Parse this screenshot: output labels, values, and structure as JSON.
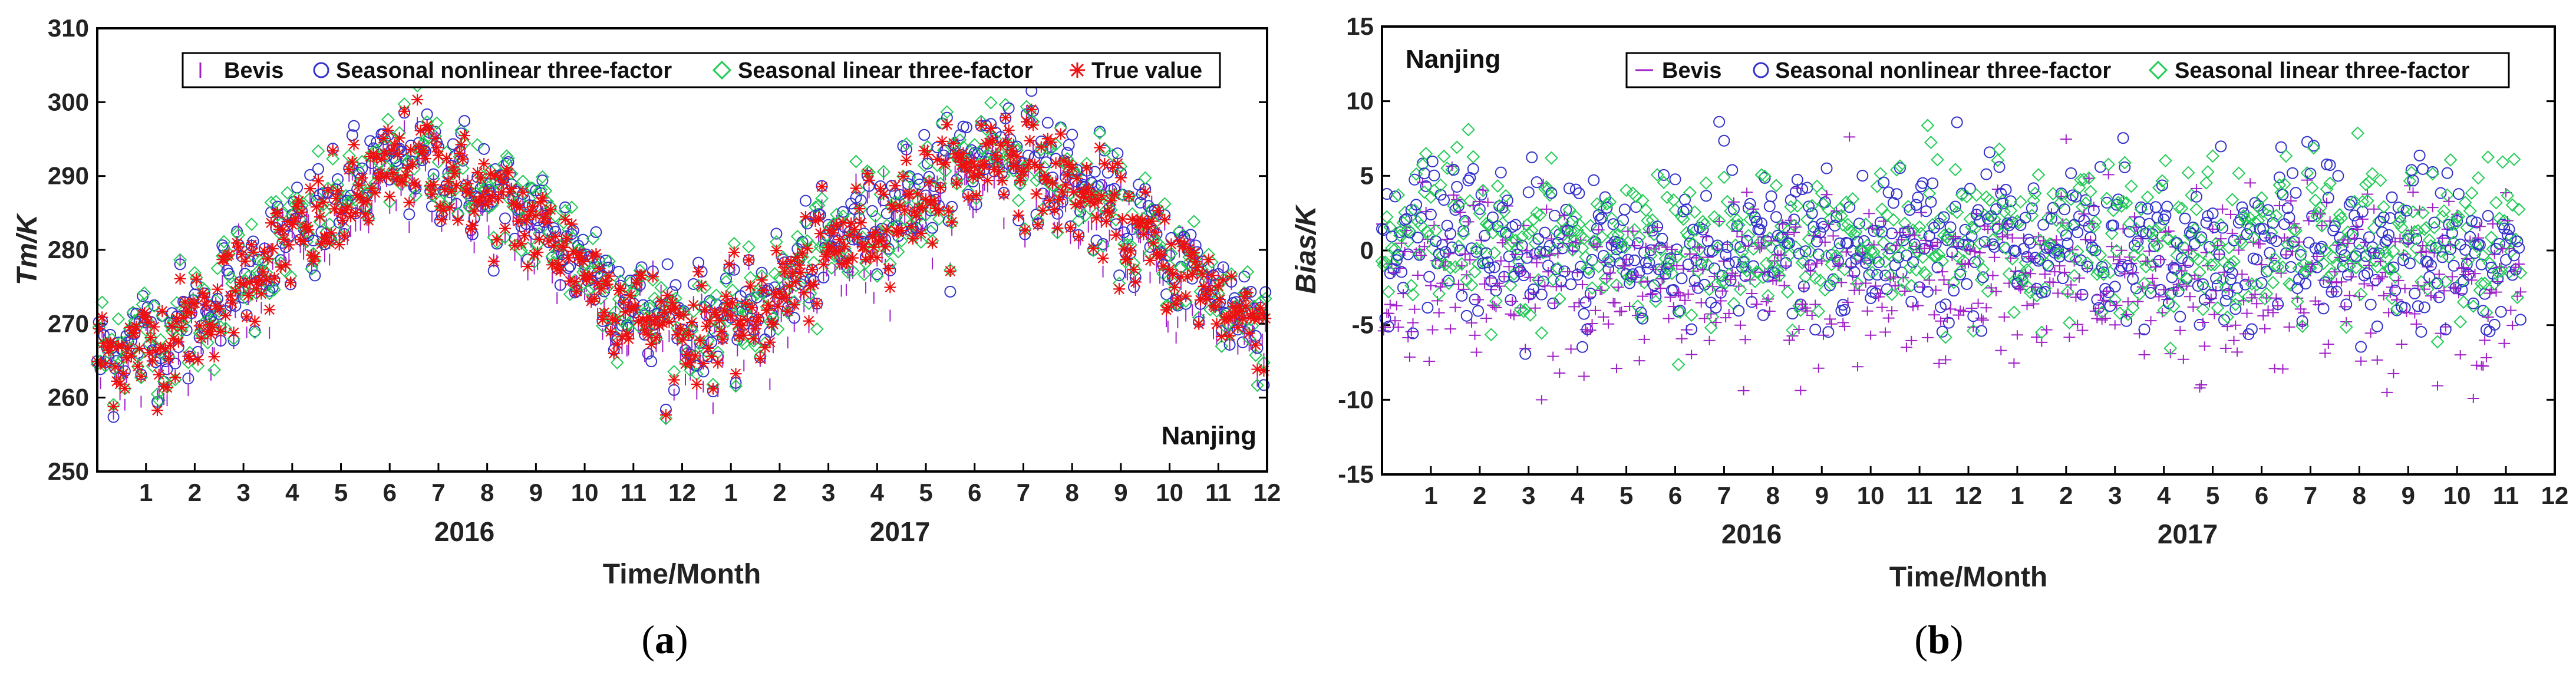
{
  "colors": {
    "bevis": "#a020c8",
    "nonlinear": "#3333cc",
    "linear": "#22cc55",
    "true": "#ee1111"
  },
  "chart_data": [
    {
      "type": "scatter",
      "panel_label": "a",
      "station": "Nanjing",
      "xlabel": "Time/Month",
      "ylabel_main": "Tm",
      "ylabel_unit": "/K",
      "ylim": [
        250,
        310
      ],
      "yticks": [
        "250",
        "260",
        "270",
        "280",
        "290",
        "300",
        "310"
      ],
      "month_ticks": [
        "1",
        "2",
        "3",
        "4",
        "5",
        "6",
        "7",
        "8",
        "9",
        "10",
        "11",
        "12",
        "1",
        "2",
        "3",
        "4",
        "5",
        "6",
        "7",
        "8",
        "9",
        "10",
        "11",
        "12"
      ],
      "years": [
        "2016",
        "2017"
      ],
      "x_range_months": [
        0,
        24
      ],
      "legend": [
        "Bevis",
        "Seasonal nonlinear three-factor",
        "Seasonal linear three-factor",
        "True value"
      ],
      "series_summary": {
        "true_value_monthly_mean_K": [
          266,
          268,
          273,
          279,
          283,
          288,
          293,
          289,
          285,
          281,
          274,
          270,
          269,
          271,
          277,
          282,
          286,
          289,
          294,
          290,
          286,
          281,
          276,
          271
        ],
        "daily_scatter_std_K": 3.5,
        "model_offsets_K": {
          "Bevis": -1.2,
          "Seasonal nonlinear three-factor": 0.8,
          "Seasonal linear three-factor": 0.5
        }
      }
    },
    {
      "type": "scatter",
      "panel_label": "b",
      "station": "Nanjing",
      "xlabel": "Time/Month",
      "ylabel_main": "Bias",
      "ylabel_unit": "/K",
      "ylim": [
        -15,
        15
      ],
      "yticks": [
        "-15",
        "-10",
        "-5",
        "0",
        "5",
        "10",
        "15"
      ],
      "month_ticks": [
        "1",
        "2",
        "3",
        "4",
        "5",
        "6",
        "7",
        "8",
        "9",
        "10",
        "11",
        "12",
        "1",
        "2",
        "3",
        "4",
        "5",
        "6",
        "7",
        "8",
        "9",
        "10",
        "11",
        "12"
      ],
      "years": [
        "2016",
        "2017"
      ],
      "x_range_months": [
        0,
        24
      ],
      "legend": [
        "Bevis",
        "Seasonal nonlinear three-factor",
        "Seasonal linear three-factor"
      ],
      "series_summary": {
        "bias_mean_K": {
          "Bevis": -1.8,
          "Seasonal nonlinear three-factor": 0.2,
          "Seasonal linear three-factor": 0.6
        },
        "bias_std_K": {
          "Bevis": 3.2,
          "Seasonal nonlinear three-factor": 2.9,
          "Seasonal linear three-factor": 2.7
        },
        "bias_range_K": [
          -10,
          10
        ]
      }
    }
  ]
}
